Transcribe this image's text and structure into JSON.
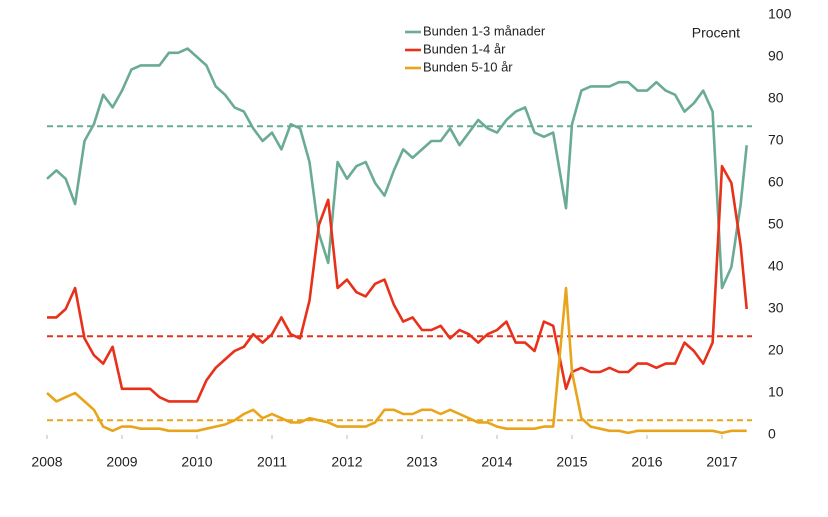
{
  "chart_data": {
    "type": "line",
    "x": [
      2008,
      2008.125,
      2008.25,
      2008.375,
      2008.5,
      2008.625,
      2008.75,
      2008.875,
      2009,
      2009.125,
      2009.25,
      2009.375,
      2009.5,
      2009.625,
      2009.75,
      2009.875,
      2010,
      2010.125,
      2010.25,
      2010.375,
      2010.5,
      2010.625,
      2010.75,
      2010.875,
      2011,
      2011.125,
      2011.25,
      2011.375,
      2011.5,
      2011.625,
      2011.75,
      2011.875,
      2012,
      2012.125,
      2012.25,
      2012.375,
      2012.5,
      2012.625,
      2012.75,
      2012.875,
      2013,
      2013.125,
      2013.25,
      2013.375,
      2013.5,
      2013.625,
      2013.75,
      2013.875,
      2014,
      2014.125,
      2014.25,
      2014.375,
      2014.5,
      2014.625,
      2014.75,
      2014.92,
      2015,
      2015.125,
      2015.25,
      2015.375,
      2015.5,
      2015.625,
      2015.75,
      2015.875,
      2016,
      2016.125,
      2016.25,
      2016.375,
      2016.5,
      2016.625,
      2016.75,
      2016.875,
      2017,
      2017.125,
      2017.25,
      2017.33
    ],
    "series": [
      {
        "name": "Bunden 1-3 månader",
        "color": "#6aab93",
        "average": 73.5,
        "values": [
          61,
          63,
          61,
          55,
          70,
          74,
          81,
          78,
          82,
          87,
          88,
          88,
          88,
          91,
          91,
          92,
          90,
          88,
          83,
          81,
          78,
          77,
          73,
          70,
          72,
          68,
          74,
          73,
          65,
          48,
          41,
          65,
          61,
          64,
          65,
          60,
          57,
          63,
          68,
          66,
          68,
          70,
          70,
          73,
          69,
          72,
          75,
          73,
          72,
          75,
          77,
          78,
          72,
          71,
          72,
          54,
          74,
          82,
          83,
          83,
          83,
          84,
          84,
          82,
          82,
          84,
          82,
          81,
          77,
          79,
          82,
          77,
          35,
          40,
          55,
          69
        ]
      },
      {
        "name": "Bunden 1-4 år",
        "color": "#e8311a",
        "average": 23.5,
        "values": [
          28,
          28,
          30,
          35,
          23,
          19,
          17,
          21,
          11,
          11,
          11,
          11,
          9,
          8,
          8,
          8,
          8,
          13,
          16,
          18,
          20,
          21,
          24,
          22,
          24,
          28,
          24,
          23,
          32,
          50,
          56,
          35,
          37,
          34,
          33,
          36,
          37,
          31,
          27,
          28,
          25,
          25,
          26,
          23,
          25,
          24,
          22,
          24,
          25,
          27,
          22,
          22,
          20,
          27,
          26,
          11,
          15,
          16,
          15,
          15,
          16,
          15,
          15,
          17,
          17,
          16,
          17,
          17,
          22,
          20,
          17,
          22,
          64,
          60,
          45,
          30
        ]
      },
      {
        "name": "Bunden 5-10 år",
        "color": "#e8a51c",
        "average": 3.5,
        "values": [
          10,
          8,
          9,
          10,
          8,
          6,
          2,
          1,
          2,
          2,
          1.5,
          1.5,
          1.5,
          1,
          1,
          1,
          1,
          1.5,
          2,
          2.5,
          3.5,
          5,
          6,
          4,
          5,
          4,
          3,
          3,
          4,
          3.5,
          3,
          2,
          2,
          2,
          2,
          3,
          6,
          6,
          5,
          5,
          6,
          6,
          5,
          6,
          5,
          4,
          3,
          3,
          2,
          1.5,
          1.5,
          1.5,
          1.5,
          2,
          2,
          35,
          15,
          4,
          2,
          1.5,
          1,
          1,
          0.5,
          1,
          1,
          1,
          1,
          1,
          1,
          1,
          1,
          1,
          0.5,
          1,
          1,
          1
        ]
      }
    ],
    "xlim": [
      2008,
      2017.4
    ],
    "xticks": [
      2008,
      2009,
      2010,
      2011,
      2012,
      2013,
      2014,
      2015,
      2016,
      2017
    ],
    "ylim": [
      0,
      100
    ],
    "yticks": [
      0,
      10,
      20,
      30,
      40,
      50,
      60,
      70,
      80,
      90,
      100
    ],
    "y_axis_label": "Procent",
    "y_axis_side": "right",
    "legend": "top"
  }
}
